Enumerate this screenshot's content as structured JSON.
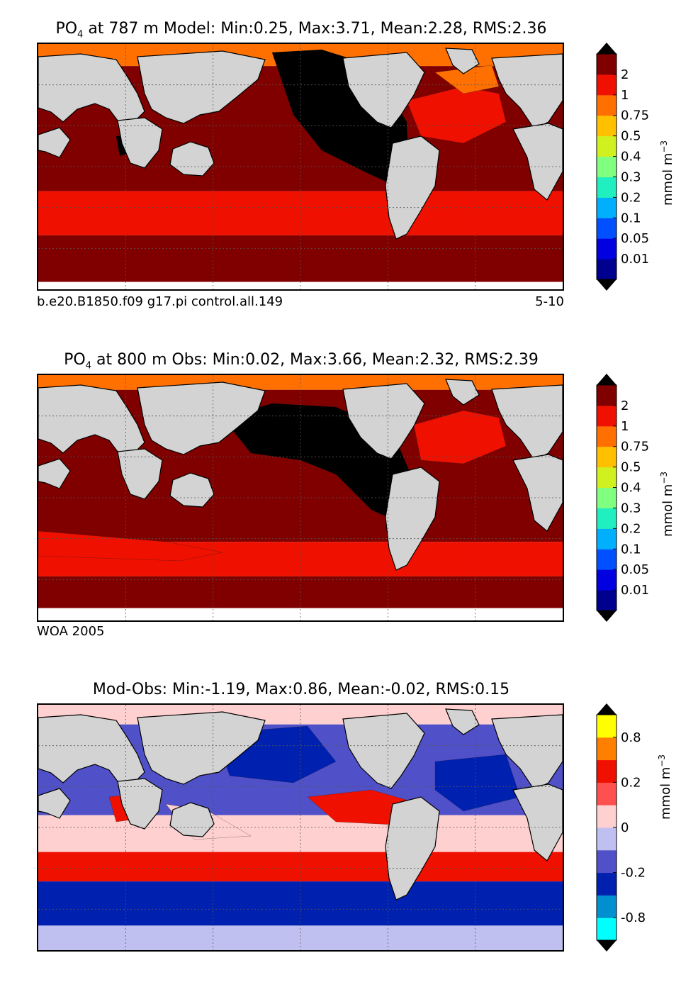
{
  "chart_data": [
    {
      "type": "heatmap",
      "title": "at 787 m Model: Min:0.25, Max:3.71, Mean:2.28, RMS:2.36",
      "title_variable": "PO",
      "title_subscript": "4",
      "stats": {
        "min": 0.25,
        "max": 3.71,
        "mean": 2.28,
        "rms": 2.36
      },
      "caption_left": "b.e20.B1850.f09 g17.pi control.all.149",
      "caption_right": "5-10",
      "colorbar": {
        "unit": "mmol m",
        "unit_superscript": "−3",
        "tick_labels": [
          "0.01",
          "0.05",
          "0.1",
          "0.2",
          "0.3",
          "0.4",
          "0.5",
          "0.75",
          "1",
          "2"
        ],
        "colors": [
          "#00008f",
          "#0000e0",
          "#0050ff",
          "#00b0ff",
          "#20f0c0",
          "#80ff80",
          "#d0f020",
          "#ffc000",
          "#ff7000",
          "#f01000",
          "#800000"
        ],
        "extend": "both"
      },
      "grid": true
    },
    {
      "type": "heatmap",
      "title": "at 800 m Obs: Min:0.02, Max:3.66, Mean:2.32, RMS:2.39",
      "title_variable": "PO",
      "title_subscript": "4",
      "stats": {
        "min": 0.02,
        "max": 3.66,
        "mean": 2.32,
        "rms": 2.39
      },
      "caption_left": "WOA 2005",
      "caption_right": "",
      "colorbar": {
        "unit": "mmol m",
        "unit_superscript": "−3",
        "tick_labels": [
          "0.01",
          "0.05",
          "0.1",
          "0.2",
          "0.3",
          "0.4",
          "0.5",
          "0.75",
          "1",
          "2"
        ],
        "colors": [
          "#00008f",
          "#0000e0",
          "#0050ff",
          "#00b0ff",
          "#20f0c0",
          "#80ff80",
          "#d0f020",
          "#ffc000",
          "#ff7000",
          "#f01000",
          "#800000"
        ],
        "extend": "both"
      },
      "grid": true
    },
    {
      "type": "heatmap",
      "title": "Mod-Obs: Min:-1.19, Max:0.86, Mean:-0.02, RMS:0.15",
      "title_variable": "",
      "title_subscript": "",
      "stats": {
        "min": -1.19,
        "max": 0.86,
        "mean": -0.02,
        "rms": 0.15
      },
      "caption_left": "",
      "caption_right": "",
      "colorbar": {
        "unit": "mmol m",
        "unit_superscript": "−3",
        "tick_labels": [
          "-0.8",
          "",
          "-0.2",
          "",
          "0",
          "",
          "0.2",
          "",
          "0.8",
          ""
        ],
        "colors": [
          "#00ffff",
          "#0090d0",
          "#0020b0",
          "#5050c8",
          "#c0c0f0",
          "#ffd0d0",
          "#ff5050",
          "#f01000",
          "#ff8000",
          "#ffff00"
        ],
        "extend": "both"
      },
      "grid": true
    }
  ]
}
